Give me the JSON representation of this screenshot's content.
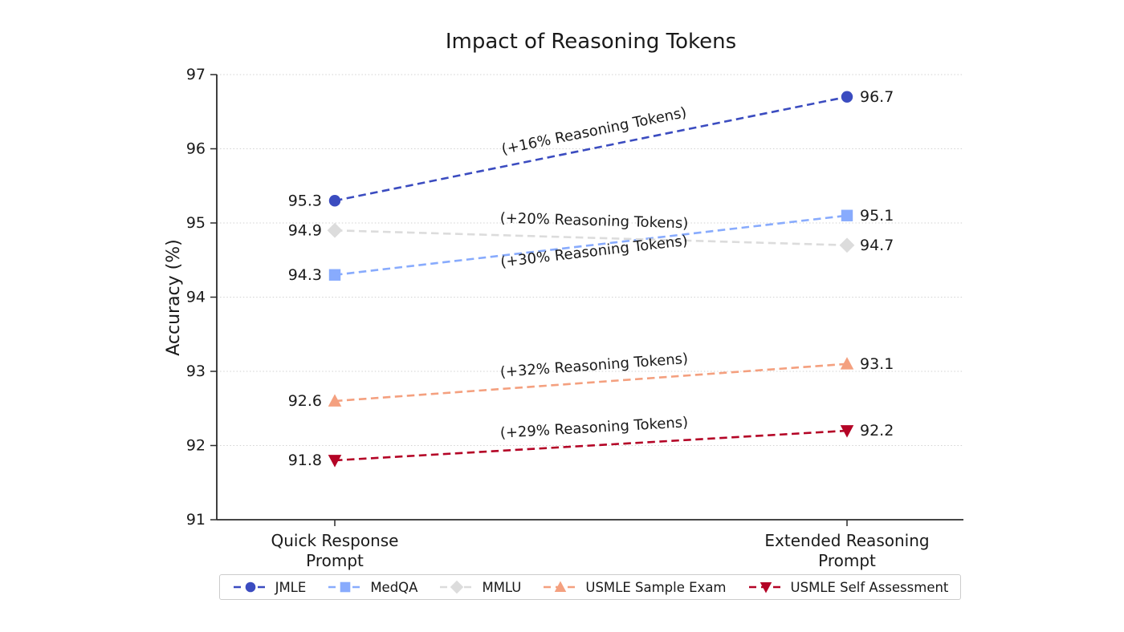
{
  "chart_data": {
    "type": "line",
    "title": "Impact of Reasoning Tokens",
    "ylabel": "Accuracy (%)",
    "xlabel": "",
    "categories": [
      "Quick Response\nPrompt",
      "Extended Reasoning\nPrompt"
    ],
    "ylim": [
      91,
      97
    ],
    "yticks": [
      91,
      92,
      93,
      94,
      95,
      96,
      97
    ],
    "grid": "horizontal dotted gridlines",
    "legend_position": "bottom center",
    "series": [
      {
        "name": "JMLE",
        "marker": "circle",
        "color": "#3b4cc0",
        "values": [
          95.3,
          96.7
        ],
        "annotation": "(+16% Reasoning Tokens)"
      },
      {
        "name": "MedQA",
        "marker": "square",
        "color": "#88abfd",
        "values": [
          94.3,
          95.1
        ],
        "annotation": "(+30% Reasoning Tokens)"
      },
      {
        "name": "MMLU",
        "marker": "diamond",
        "color": "#dcdcdc",
        "values": [
          94.9,
          94.7
        ],
        "annotation": "(+20% Reasoning Tokens)"
      },
      {
        "name": "USMLE Sample Exam",
        "marker": "triangle-up",
        "color": "#f4a07f",
        "values": [
          92.6,
          93.1
        ],
        "annotation": "(+32% Reasoning Tokens)"
      },
      {
        "name": "USMLE Self Assessment",
        "marker": "triangle-down",
        "color": "#b40426",
        "values": [
          91.8,
          92.2
        ],
        "annotation": "(+29% Reasoning Tokens)"
      }
    ],
    "line_style": "dashed",
    "text_color": "#1a1a1a",
    "grid_color": "#c8c8c8",
    "axis_color": "#2b2b2b"
  }
}
